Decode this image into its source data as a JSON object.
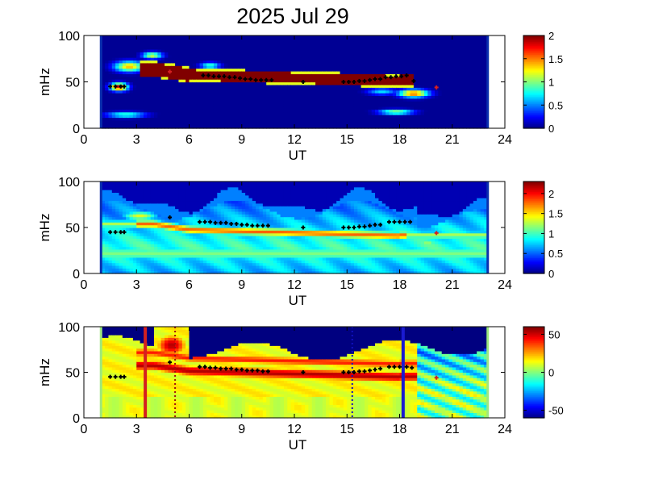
{
  "title": "2025 Jul 29",
  "colors": {
    "axis": "#000000",
    "marker_black": "#000000",
    "marker_red": "#d42020",
    "bg_blue": "#0a2fae",
    "border_green": "#9ee87e"
  },
  "chart_data": [
    {
      "type": "heatmap",
      "panel": "top",
      "xlabel": "UT",
      "ylabel": "mHz",
      "xlim": [
        0,
        24
      ],
      "ylim": [
        0,
        100
      ],
      "xticks": [
        "0",
        "3",
        "6",
        "9",
        "12",
        "15",
        "18",
        "21",
        "24"
      ],
      "yticks": [
        "0",
        "50",
        "100"
      ],
      "data_x_range": [
        1,
        23
      ],
      "colorbar": {
        "min": 0,
        "max": 2,
        "ticks": [
          "0",
          "0.5",
          "1",
          "1.5",
          "2"
        ],
        "tick_values": [
          0,
          0.5,
          1,
          1.5,
          2
        ]
      },
      "black_markers": [
        [
          1.5,
          45
        ],
        [
          1.8,
          45
        ],
        [
          2.1,
          45
        ],
        [
          2.3,
          45
        ],
        [
          6.8,
          57
        ],
        [
          7.1,
          57
        ],
        [
          7.4,
          56
        ],
        [
          7.7,
          56
        ],
        [
          8.0,
          56
        ],
        [
          8.3,
          55
        ],
        [
          8.6,
          55
        ],
        [
          8.9,
          54
        ],
        [
          9.2,
          53
        ],
        [
          9.5,
          53
        ],
        [
          9.8,
          52
        ],
        [
          10.1,
          52
        ],
        [
          10.4,
          52
        ],
        [
          10.7,
          52
        ],
        [
          12.5,
          50
        ],
        [
          14.8,
          50
        ],
        [
          15.1,
          50
        ],
        [
          15.4,
          50
        ],
        [
          15.7,
          51
        ],
        [
          16.0,
          51
        ],
        [
          16.3,
          52
        ],
        [
          16.6,
          53
        ],
        [
          16.9,
          53
        ],
        [
          17.2,
          55
        ],
        [
          17.5,
          55
        ],
        [
          17.8,
          56
        ],
        [
          18.1,
          56
        ],
        [
          18.4,
          57
        ],
        [
          18.8,
          51
        ]
      ],
      "red_markers": [
        [
          4.9,
          61
        ],
        [
          20.1,
          44
        ]
      ]
    },
    {
      "type": "heatmap",
      "panel": "middle",
      "xlabel": "UT",
      "ylabel": "mHz",
      "xlim": [
        0,
        24
      ],
      "ylim": [
        0,
        100
      ],
      "xticks": [
        "0",
        "3",
        "6",
        "9",
        "12",
        "15",
        "18",
        "21",
        "24"
      ],
      "yticks": [
        "0",
        "50",
        "100"
      ],
      "data_x_range": [
        1,
        23
      ],
      "colorbar": {
        "min": 0,
        "max": 2.3,
        "ticks": [
          "0",
          "0.5",
          "1",
          "1.5",
          "2"
        ],
        "tick_values": [
          0,
          0.5,
          1,
          1.5,
          2
        ]
      },
      "black_markers": [
        [
          1.5,
          45
        ],
        [
          1.8,
          45
        ],
        [
          2.1,
          45
        ],
        [
          2.3,
          45
        ],
        [
          4.9,
          61
        ],
        [
          6.6,
          56
        ],
        [
          6.9,
          56
        ],
        [
          7.2,
          56
        ],
        [
          7.5,
          55
        ],
        [
          7.8,
          55
        ],
        [
          8.1,
          55
        ],
        [
          8.4,
          54
        ],
        [
          8.7,
          54
        ],
        [
          9.0,
          53
        ],
        [
          9.3,
          53
        ],
        [
          9.6,
          52
        ],
        [
          9.9,
          52
        ],
        [
          10.2,
          52
        ],
        [
          10.5,
          52
        ],
        [
          12.5,
          50
        ],
        [
          14.8,
          50
        ],
        [
          15.1,
          50
        ],
        [
          15.4,
          50
        ],
        [
          15.7,
          51
        ],
        [
          16.0,
          51
        ],
        [
          16.3,
          52
        ],
        [
          16.6,
          53
        ],
        [
          16.9,
          53
        ],
        [
          17.4,
          56
        ],
        [
          17.7,
          56
        ],
        [
          18.0,
          56
        ],
        [
          18.3,
          56
        ],
        [
          18.6,
          56
        ]
      ],
      "red_markers": [
        [
          20.1,
          44
        ]
      ]
    },
    {
      "type": "heatmap",
      "panel": "bottom",
      "xlabel": "UT",
      "ylabel": "mHz",
      "xlim": [
        0,
        24
      ],
      "ylim": [
        0,
        100
      ],
      "xticks": [
        "0",
        "3",
        "6",
        "9",
        "12",
        "15",
        "18",
        "21",
        "24"
      ],
      "yticks": [
        "0",
        "50",
        "100"
      ],
      "data_x_range": [
        1,
        23
      ],
      "colorbar": {
        "min": -60,
        "max": 60,
        "ticks": [
          "-50",
          "0",
          "50"
        ],
        "tick_values": [
          -50,
          0,
          50
        ]
      },
      "vertical_lines": [
        {
          "x": 3.5,
          "color": "#d42020",
          "style": "solid"
        },
        {
          "x": 5.2,
          "color": "#a01010",
          "style": "dotted"
        },
        {
          "x": 15.3,
          "color": "#1010c0",
          "style": "dotted"
        },
        {
          "x": 18.2,
          "color": "#1a1ad0",
          "style": "solid"
        }
      ],
      "black_markers": [
        [
          1.5,
          45
        ],
        [
          1.8,
          45
        ],
        [
          2.1,
          45
        ],
        [
          2.3,
          45
        ],
        [
          4.9,
          61
        ],
        [
          6.6,
          56
        ],
        [
          6.9,
          56
        ],
        [
          7.2,
          55
        ],
        [
          7.5,
          55
        ],
        [
          7.8,
          54
        ],
        [
          8.1,
          54
        ],
        [
          8.4,
          54
        ],
        [
          8.7,
          53
        ],
        [
          9.0,
          53
        ],
        [
          9.3,
          52
        ],
        [
          9.6,
          52
        ],
        [
          9.9,
          52
        ],
        [
          10.2,
          51
        ],
        [
          10.5,
          51
        ],
        [
          12.5,
          50
        ],
        [
          14.8,
          50
        ],
        [
          15.1,
          50
        ],
        [
          15.4,
          50
        ],
        [
          15.7,
          51
        ],
        [
          16.0,
          51
        ],
        [
          16.3,
          52
        ],
        [
          16.6,
          53
        ],
        [
          16.9,
          54
        ],
        [
          17.4,
          56
        ],
        [
          17.7,
          56
        ],
        [
          18.0,
          56
        ],
        [
          18.4,
          56
        ],
        [
          18.7,
          55
        ]
      ],
      "red_markers": [
        [
          20.1,
          44
        ]
      ]
    }
  ]
}
